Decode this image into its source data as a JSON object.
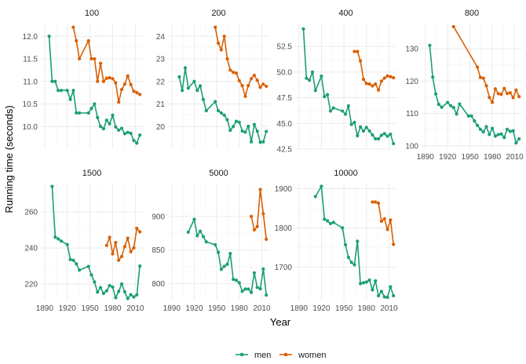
{
  "chart_data": {
    "type": "line",
    "xlabel": "Year",
    "ylabel": "Running time (seconds)",
    "x_ticks": [
      1890,
      1920,
      1950,
      1980,
      2010
    ],
    "x_range": [
      1885,
      2020
    ],
    "legend": {
      "position": "bottom",
      "entries": [
        {
          "name": "men",
          "color": "#1b9e77"
        },
        {
          "name": "women",
          "color": "#d95f02"
        }
      ]
    },
    "facets": [
      {
        "title": "100",
        "ylim": [
          9.5,
          12.3
        ],
        "yticks": [
          10.0,
          10.5,
          11.0,
          11.5,
          12.0
        ],
        "tick_decimals": 1,
        "series": [
          {
            "name": "men",
            "x": [
              1896,
              1900,
              1904,
              1908,
              1912,
              1920,
              1924,
              1928,
              1932,
              1936,
              1948,
              1952,
              1956,
              1960,
              1964,
              1968,
              1972,
              1976,
              1980,
              1984,
              1988,
              1992,
              1996,
              2000,
              2004,
              2008,
              2012,
              2016
            ],
            "y": [
              12.0,
              11.0,
              11.0,
              10.8,
              10.8,
              10.8,
              10.6,
              10.8,
              10.3,
              10.3,
              10.3,
              10.4,
              10.5,
              10.2,
              10.0,
              9.95,
              10.14,
              10.06,
              10.25,
              9.99,
              9.92,
              9.96,
              9.84,
              9.87,
              9.85,
              9.69,
              9.63,
              9.81
            ]
          },
          {
            "name": "women",
            "x": [
              1928,
              1932,
              1936,
              1948,
              1952,
              1956,
              1960,
              1964,
              1968,
              1972,
              1976,
              1980,
              1984,
              1988,
              1992,
              1996,
              2000,
              2004,
              2008,
              2012,
              2016
            ],
            "y": [
              12.2,
              11.9,
              11.5,
              11.9,
              11.5,
              11.5,
              11.0,
              11.4,
              11.0,
              11.07,
              11.08,
              11.06,
              10.97,
              10.54,
              10.82,
              10.94,
              11.12,
              10.93,
              10.78,
              10.75,
              10.71
            ]
          }
        ]
      },
      {
        "title": "200",
        "ylim": [
          19.0,
          24.6
        ],
        "yticks": [
          20,
          21,
          22,
          23,
          24
        ],
        "tick_decimals": 0,
        "series": [
          {
            "name": "men",
            "x": [
              1900,
              1904,
              1908,
              1912,
              1920,
              1924,
              1928,
              1932,
              1936,
              1948,
              1952,
              1956,
              1960,
              1964,
              1968,
              1972,
              1976,
              1980,
              1984,
              1988,
              1992,
              1996,
              2000,
              2004,
              2008,
              2012,
              2016
            ],
            "y": [
              22.2,
              21.6,
              22.6,
              21.7,
              22.0,
              21.6,
              21.8,
              21.2,
              20.7,
              21.1,
              20.7,
              20.6,
              20.5,
              20.3,
              19.83,
              20.0,
              20.23,
              20.19,
              19.8,
              19.75,
              20.01,
              19.32,
              20.09,
              19.79,
              19.3,
              19.32,
              19.78
            ]
          },
          {
            "name": "women",
            "x": [
              1948,
              1952,
              1956,
              1960,
              1964,
              1968,
              1972,
              1976,
              1980,
              1984,
              1988,
              1992,
              1996,
              2000,
              2004,
              2008,
              2012,
              2016
            ],
            "y": [
              24.4,
              23.7,
              23.4,
              24.0,
              23.0,
              22.5,
              22.4,
              22.37,
              22.03,
              21.81,
              21.34,
              21.81,
              22.12,
              22.27,
              22.05,
              21.74,
              21.88,
              21.78
            ]
          }
        ]
      },
      {
        "title": "400",
        "ylim": [
          42.5,
          54.8
        ],
        "yticks": [
          42.5,
          45.0,
          47.5,
          50.0,
          52.5
        ],
        "tick_decimals": 1,
        "series": [
          {
            "name": "men",
            "x": [
              1896,
              1900,
              1904,
              1908,
              1912,
              1920,
              1924,
              1928,
              1932,
              1936,
              1948,
              1952,
              1956,
              1960,
              1964,
              1968,
              1972,
              1976,
              1980,
              1984,
              1988,
              1992,
              1996,
              2000,
              2004,
              2008,
              2012,
              2016
            ],
            "y": [
              54.2,
              49.4,
              49.2,
              50.0,
              48.2,
              49.6,
              47.6,
              47.8,
              46.2,
              46.5,
              46.2,
              45.9,
              46.7,
              44.9,
              45.1,
              43.8,
              44.66,
              44.26,
              44.6,
              44.27,
              43.87,
              43.5,
              43.49,
              43.84,
              44.0,
              43.75,
              43.94,
              43.03
            ]
          },
          {
            "name": "women",
            "x": [
              1964,
              1968,
              1972,
              1976,
              1980,
              1984,
              1988,
              1992,
              1996,
              2000,
              2004,
              2008,
              2012,
              2016
            ],
            "y": [
              52.0,
              52.0,
              51.08,
              49.29,
              48.88,
              48.83,
              48.65,
              48.83,
              48.25,
              49.11,
              49.41,
              49.62,
              49.55,
              49.44
            ]
          }
        ]
      },
      {
        "title": "800",
        "ylim": [
          99,
          138
        ],
        "yticks": [
          100,
          110,
          120,
          130
        ],
        "tick_decimals": 0,
        "series": [
          {
            "name": "men",
            "x": [
              1896,
              1900,
              1904,
              1908,
              1912,
              1920,
              1924,
              1928,
              1932,
              1936,
              1948,
              1952,
              1956,
              1960,
              1964,
              1968,
              1972,
              1976,
              1980,
              1984,
              1988,
              1992,
              1996,
              2000,
              2004,
              2008,
              2012,
              2016
            ],
            "y": [
              131.0,
              121.2,
              116.0,
              112.8,
              111.9,
              113.4,
              112.4,
              111.8,
              109.8,
              112.9,
              109.2,
              109.2,
              107.7,
              106.3,
              105.1,
              104.3,
              105.9,
              103.5,
              105.4,
              103.0,
              103.45,
              103.66,
              102.58,
              105.08,
              104.45,
              104.65,
              100.91,
              102.15
            ]
          },
          {
            "name": "women",
            "x": [
              1928,
              1960,
              1964,
              1968,
              1972,
              1976,
              1980,
              1984,
              1988,
              1992,
              1996,
              2000,
              2004,
              2008,
              2012,
              2016
            ],
            "y": [
              136.8,
              124.3,
              121.1,
              120.9,
              118.55,
              114.94,
              113.42,
              117.6,
              116.1,
              115.9,
              117.73,
              116.15,
              116.38,
              114.87,
              117.2,
              115.2
            ]
          }
        ]
      },
      {
        "title": "1500",
        "ylim": [
          211,
          276
        ],
        "yticks": [
          220,
          240,
          260
        ],
        "tick_decimals": 0,
        "series": [
          {
            "name": "men",
            "x": [
              1900,
              1904,
              1908,
              1912,
              1920,
              1924,
              1928,
              1932,
              1936,
              1948,
              1952,
              1956,
              1960,
              1964,
              1968,
              1972,
              1976,
              1980,
              1984,
              1988,
              1992,
              1996,
              2000,
              2004,
              2008,
              2012,
              2016
            ],
            "y": [
              274,
              246,
              245,
              243.8,
              241.9,
              233.6,
              233.2,
              231.2,
              227.8,
              229.8,
              225.1,
              221.2,
              215.6,
              218.1,
              214.9,
              216.3,
              219.2,
              218.4,
              212.53,
              215.96,
              220.12,
              215.78,
              212.07,
              214.18,
              212.94,
              214.08,
              230.0
            ]
          },
          {
            "name": "women",
            "x": [
              1972,
              1976,
              1980,
              1984,
              1988,
              1992,
              1996,
              2000,
              2004,
              2008,
              2012,
              2016
            ],
            "y": [
              241.4,
              245.9,
              236.7,
              243.0,
              233.2,
              235.3,
              240.8,
              245.4,
              237.9,
              240.0,
              250.8,
              248.9
            ]
          }
        ]
      },
      {
        "title": "5000",
        "ylim": [
          775,
          950
        ],
        "yticks": [
          800,
          850,
          900
        ],
        "tick_decimals": 0,
        "series": [
          {
            "name": "men",
            "x": [
              1912,
              1920,
              1924,
              1928,
              1932,
              1936,
              1948,
              1952,
              1956,
              1960,
              1964,
              1968,
              1972,
              1976,
              1980,
              1984,
              1988,
              1992,
              1996,
              2000,
              2004,
              2008,
              2012,
              2016
            ],
            "y": [
              876.6,
              895.6,
              871.2,
              878.0,
              870.0,
              862.2,
              857.8,
              846.6,
              821.2,
              825.8,
              828.8,
              844.8,
              806.4,
              805.0,
              801.4,
              788.6,
              791.9,
              792.0,
              787.0,
              816.0,
              794.5,
              792.4,
              821.8,
              783.0
            ]
          },
          {
            "name": "women",
            "x": [
              1996,
              2000,
              2004,
              2008,
              2012,
              2016
            ],
            "y": [
              900.0,
              880.0,
              885.0,
              940.0,
              904.0,
              866.0
            ]
          }
        ]
      },
      {
        "title": "10000",
        "ylim": [
          1615,
          1915
        ],
        "yticks": [
          1700,
          1800,
          1900
        ],
        "tick_decimals": 0,
        "series": [
          {
            "name": "men",
            "x": [
              1912,
              1920,
              1924,
              1928,
              1932,
              1936,
              1948,
              1952,
              1956,
              1960,
              1964,
              1968,
              1972,
              1976,
              1980,
              1984,
              1988,
              1992,
              1996,
              2000,
              2004,
              2008,
              2012,
              2016
            ],
            "y": [
              1880,
              1906,
              1822,
              1818,
              1811,
              1814,
              1800,
              1757,
              1725,
              1712,
              1706,
              1766,
              1658,
              1660,
              1662,
              1667,
              1642,
              1665,
              1627,
              1638,
              1624,
              1623,
              1650,
              1627
            ]
          },
          {
            "name": "women",
            "x": [
              1988,
              1992,
              1996,
              2000,
              2004,
              2008,
              2012,
              2016
            ],
            "y": [
              1866,
              1866,
              1863,
              1817,
              1823,
              1796,
              1820,
              1758
            ]
          }
        ]
      }
    ]
  }
}
